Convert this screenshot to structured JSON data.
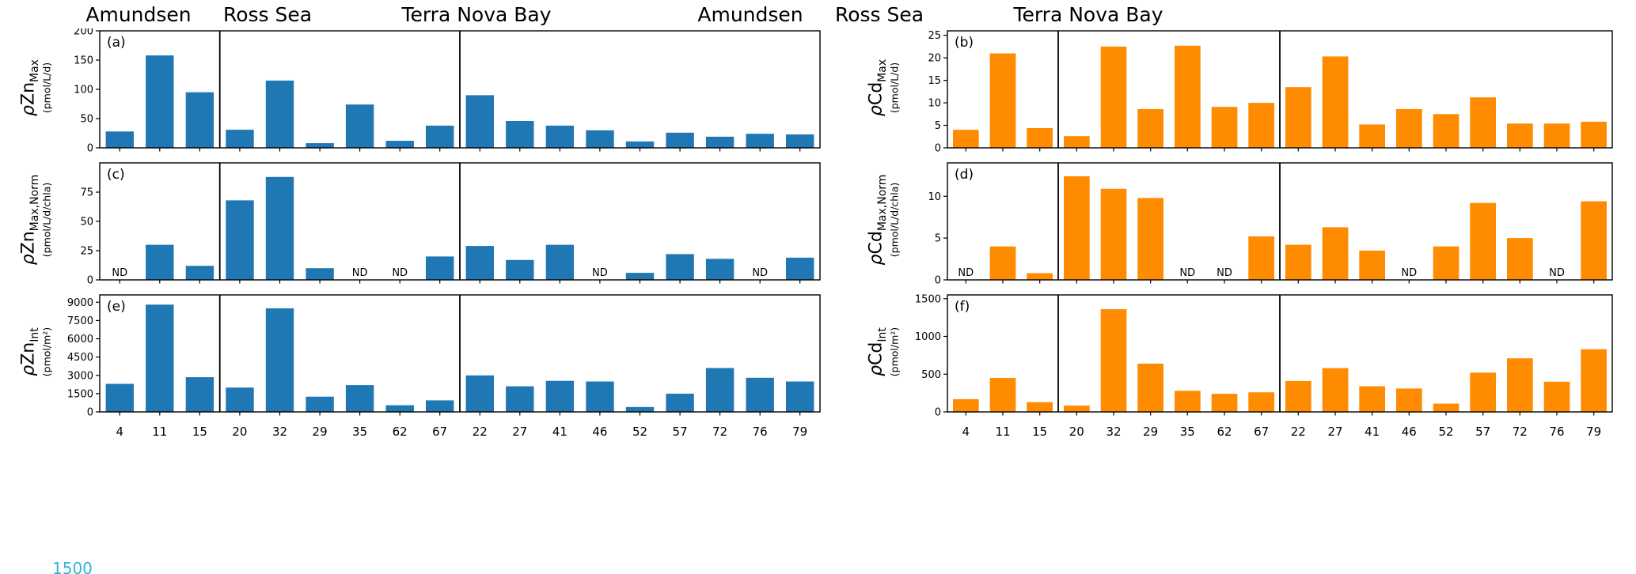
{
  "figure": {
    "region_labels": [
      "Amundsen",
      "Ross Sea",
      "Terra Nova Bay"
    ],
    "region_sizes": [
      3,
      6,
      9
    ],
    "stations": [
      "4",
      "11",
      "15",
      "20",
      "32",
      "29",
      "35",
      "62",
      "67",
      "22",
      "27",
      "41",
      "46",
      "52",
      "57",
      "72",
      "76",
      "79"
    ],
    "nd_label": "ND",
    "colors": {
      "zn_bar": "#1f77b4",
      "cd_bar": "#ff8c00",
      "axis": "#000000",
      "cropped_text_color": "#35b3d7"
    },
    "cropped_text": "1500"
  },
  "chart_data": [
    {
      "panel": "(a)",
      "type": "bar",
      "ylabel": {
        "rho": "ρ",
        "element": "Zn",
        "sub": "Max",
        "unit": "(pmol/L/d)"
      },
      "categories": [
        "4",
        "11",
        "15",
        "20",
        "32",
        "29",
        "35",
        "62",
        "67",
        "22",
        "27",
        "41",
        "46",
        "52",
        "57",
        "72",
        "76",
        "79"
      ],
      "values": [
        28,
        158,
        95,
        31,
        115,
        8,
        74,
        12,
        38,
        90,
        46,
        38,
        30,
        11,
        26,
        19,
        24,
        23
      ],
      "ylim": [
        0,
        200
      ],
      "yticks": [
        0,
        50,
        100,
        150,
        200
      ],
      "color": "#1f77b4",
      "grid": false
    },
    {
      "panel": "(b)",
      "type": "bar",
      "ylabel": {
        "rho": "ρ",
        "element": "Cd",
        "sub": "Max",
        "unit": "(pmol/L/d)"
      },
      "categories": [
        "4",
        "11",
        "15",
        "20",
        "32",
        "29",
        "35",
        "62",
        "67",
        "22",
        "27",
        "41",
        "46",
        "52",
        "57",
        "72",
        "76",
        "79"
      ],
      "values": [
        4,
        21,
        4.4,
        2.6,
        22.5,
        8.6,
        22.7,
        9.1,
        10,
        13.5,
        20.3,
        5.2,
        8.6,
        7.5,
        11.2,
        5.4,
        5.4,
        5.8
      ],
      "ylim": [
        0,
        26
      ],
      "yticks": [
        0,
        5,
        10,
        15,
        20,
        25
      ],
      "color": "#ff8c00",
      "grid": false
    },
    {
      "panel": "(c)",
      "type": "bar",
      "ylabel": {
        "rho": "ρ",
        "element": "Zn",
        "sub": "Max,Norm",
        "unit": "(pmol/L/d/chla)"
      },
      "categories": [
        "4",
        "11",
        "15",
        "20",
        "32",
        "29",
        "35",
        "62",
        "67",
        "22",
        "27",
        "41",
        "46",
        "52",
        "57",
        "72",
        "76",
        "79"
      ],
      "values": [
        null,
        30,
        12,
        68,
        88,
        10,
        null,
        null,
        20,
        29,
        17,
        30,
        null,
        6,
        22,
        18,
        null,
        19
      ],
      "ylim": [
        0,
        100
      ],
      "yticks": [
        0,
        25,
        50,
        75
      ],
      "color": "#1f77b4",
      "grid": false
    },
    {
      "panel": "(d)",
      "type": "bar",
      "ylabel": {
        "rho": "ρ",
        "element": "Cd",
        "sub": "Max,Norm",
        "unit": "(pmol/L/d/chla)"
      },
      "categories": [
        "4",
        "11",
        "15",
        "20",
        "32",
        "29",
        "35",
        "62",
        "67",
        "22",
        "27",
        "41",
        "46",
        "52",
        "57",
        "72",
        "76",
        "79"
      ],
      "values": [
        null,
        4,
        0.8,
        12.4,
        10.9,
        9.8,
        null,
        null,
        5.2,
        4.2,
        6.3,
        3.5,
        null,
        4,
        9.2,
        5,
        null,
        9.4
      ],
      "ylim": [
        0,
        14
      ],
      "yticks": [
        0,
        5,
        10
      ],
      "color": "#ff8c00",
      "grid": false
    },
    {
      "panel": "(e)",
      "type": "bar",
      "ylabel": {
        "rho": "ρ",
        "element": "Zn",
        "sub": "Int",
        "unit": "(pmol/m²)"
      },
      "categories": [
        "4",
        "11",
        "15",
        "20",
        "32",
        "29",
        "35",
        "62",
        "67",
        "22",
        "27",
        "41",
        "46",
        "52",
        "57",
        "72",
        "76",
        "79"
      ],
      "values": [
        2300,
        8800,
        2850,
        2000,
        8500,
        1250,
        2200,
        550,
        950,
        3000,
        2100,
        2550,
        2500,
        400,
        1500,
        3600,
        2800,
        2500
      ],
      "ylim": [
        0,
        9600
      ],
      "yticks": [
        0,
        1500,
        3000,
        4500,
        6000,
        7500,
        9000
      ],
      "color": "#1f77b4",
      "grid": false
    },
    {
      "panel": "(f)",
      "type": "bar",
      "ylabel": {
        "rho": "ρ",
        "element": "Cd",
        "sub": "Int",
        "unit": "(pmol/m²)"
      },
      "categories": [
        "4",
        "11",
        "15",
        "20",
        "32",
        "29",
        "35",
        "62",
        "67",
        "22",
        "27",
        "41",
        "46",
        "52",
        "57",
        "72",
        "76",
        "79"
      ],
      "values": [
        170,
        450,
        130,
        85,
        1360,
        640,
        280,
        240,
        260,
        410,
        580,
        340,
        310,
        110,
        520,
        710,
        400,
        830
      ],
      "ylim": [
        0,
        1550
      ],
      "yticks": [
        0,
        500,
        1000,
        1500
      ],
      "color": "#ff8c00",
      "grid": false
    }
  ]
}
